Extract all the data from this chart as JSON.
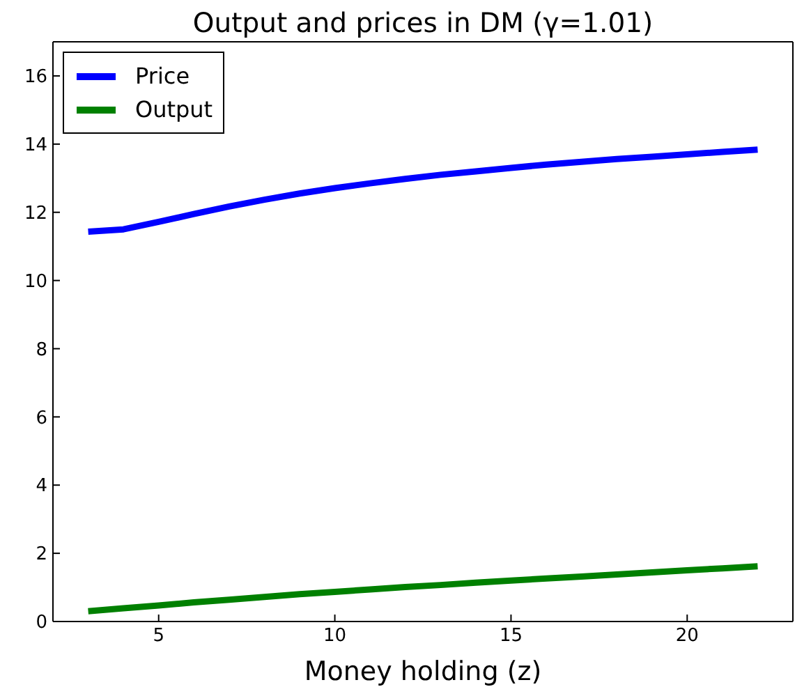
{
  "chart_data": {
    "type": "line",
    "title": "Output and prices in DM (γ=1.01)",
    "xlabel": "Money holding (z)",
    "x": [
      3,
      4,
      5,
      6,
      7,
      8,
      9,
      10,
      11,
      12,
      13,
      14,
      15,
      16,
      17,
      18,
      19,
      20,
      21,
      22
    ],
    "series": [
      {
        "name": "Price",
        "color": "#0000ff",
        "values": [
          11.43,
          11.5,
          11.72,
          11.95,
          12.17,
          12.37,
          12.55,
          12.71,
          12.85,
          12.98,
          13.1,
          13.2,
          13.3,
          13.4,
          13.48,
          13.56,
          13.63,
          13.7,
          13.77,
          13.84
        ]
      },
      {
        "name": "Output",
        "color": "#008000",
        "values": [
          0.3,
          0.39,
          0.47,
          0.56,
          0.64,
          0.72,
          0.8,
          0.87,
          0.94,
          1.01,
          1.07,
          1.14,
          1.2,
          1.26,
          1.32,
          1.38,
          1.44,
          1.5,
          1.56,
          1.62
        ]
      }
    ],
    "xlim": [
      2,
      23
    ],
    "ylim": [
      0,
      17
    ],
    "xticks": [
      5,
      10,
      15,
      20
    ],
    "yticks": [
      0,
      2,
      4,
      6,
      8,
      10,
      12,
      14,
      16
    ],
    "legend": "top left",
    "marker": "none",
    "line_style": "solid"
  }
}
